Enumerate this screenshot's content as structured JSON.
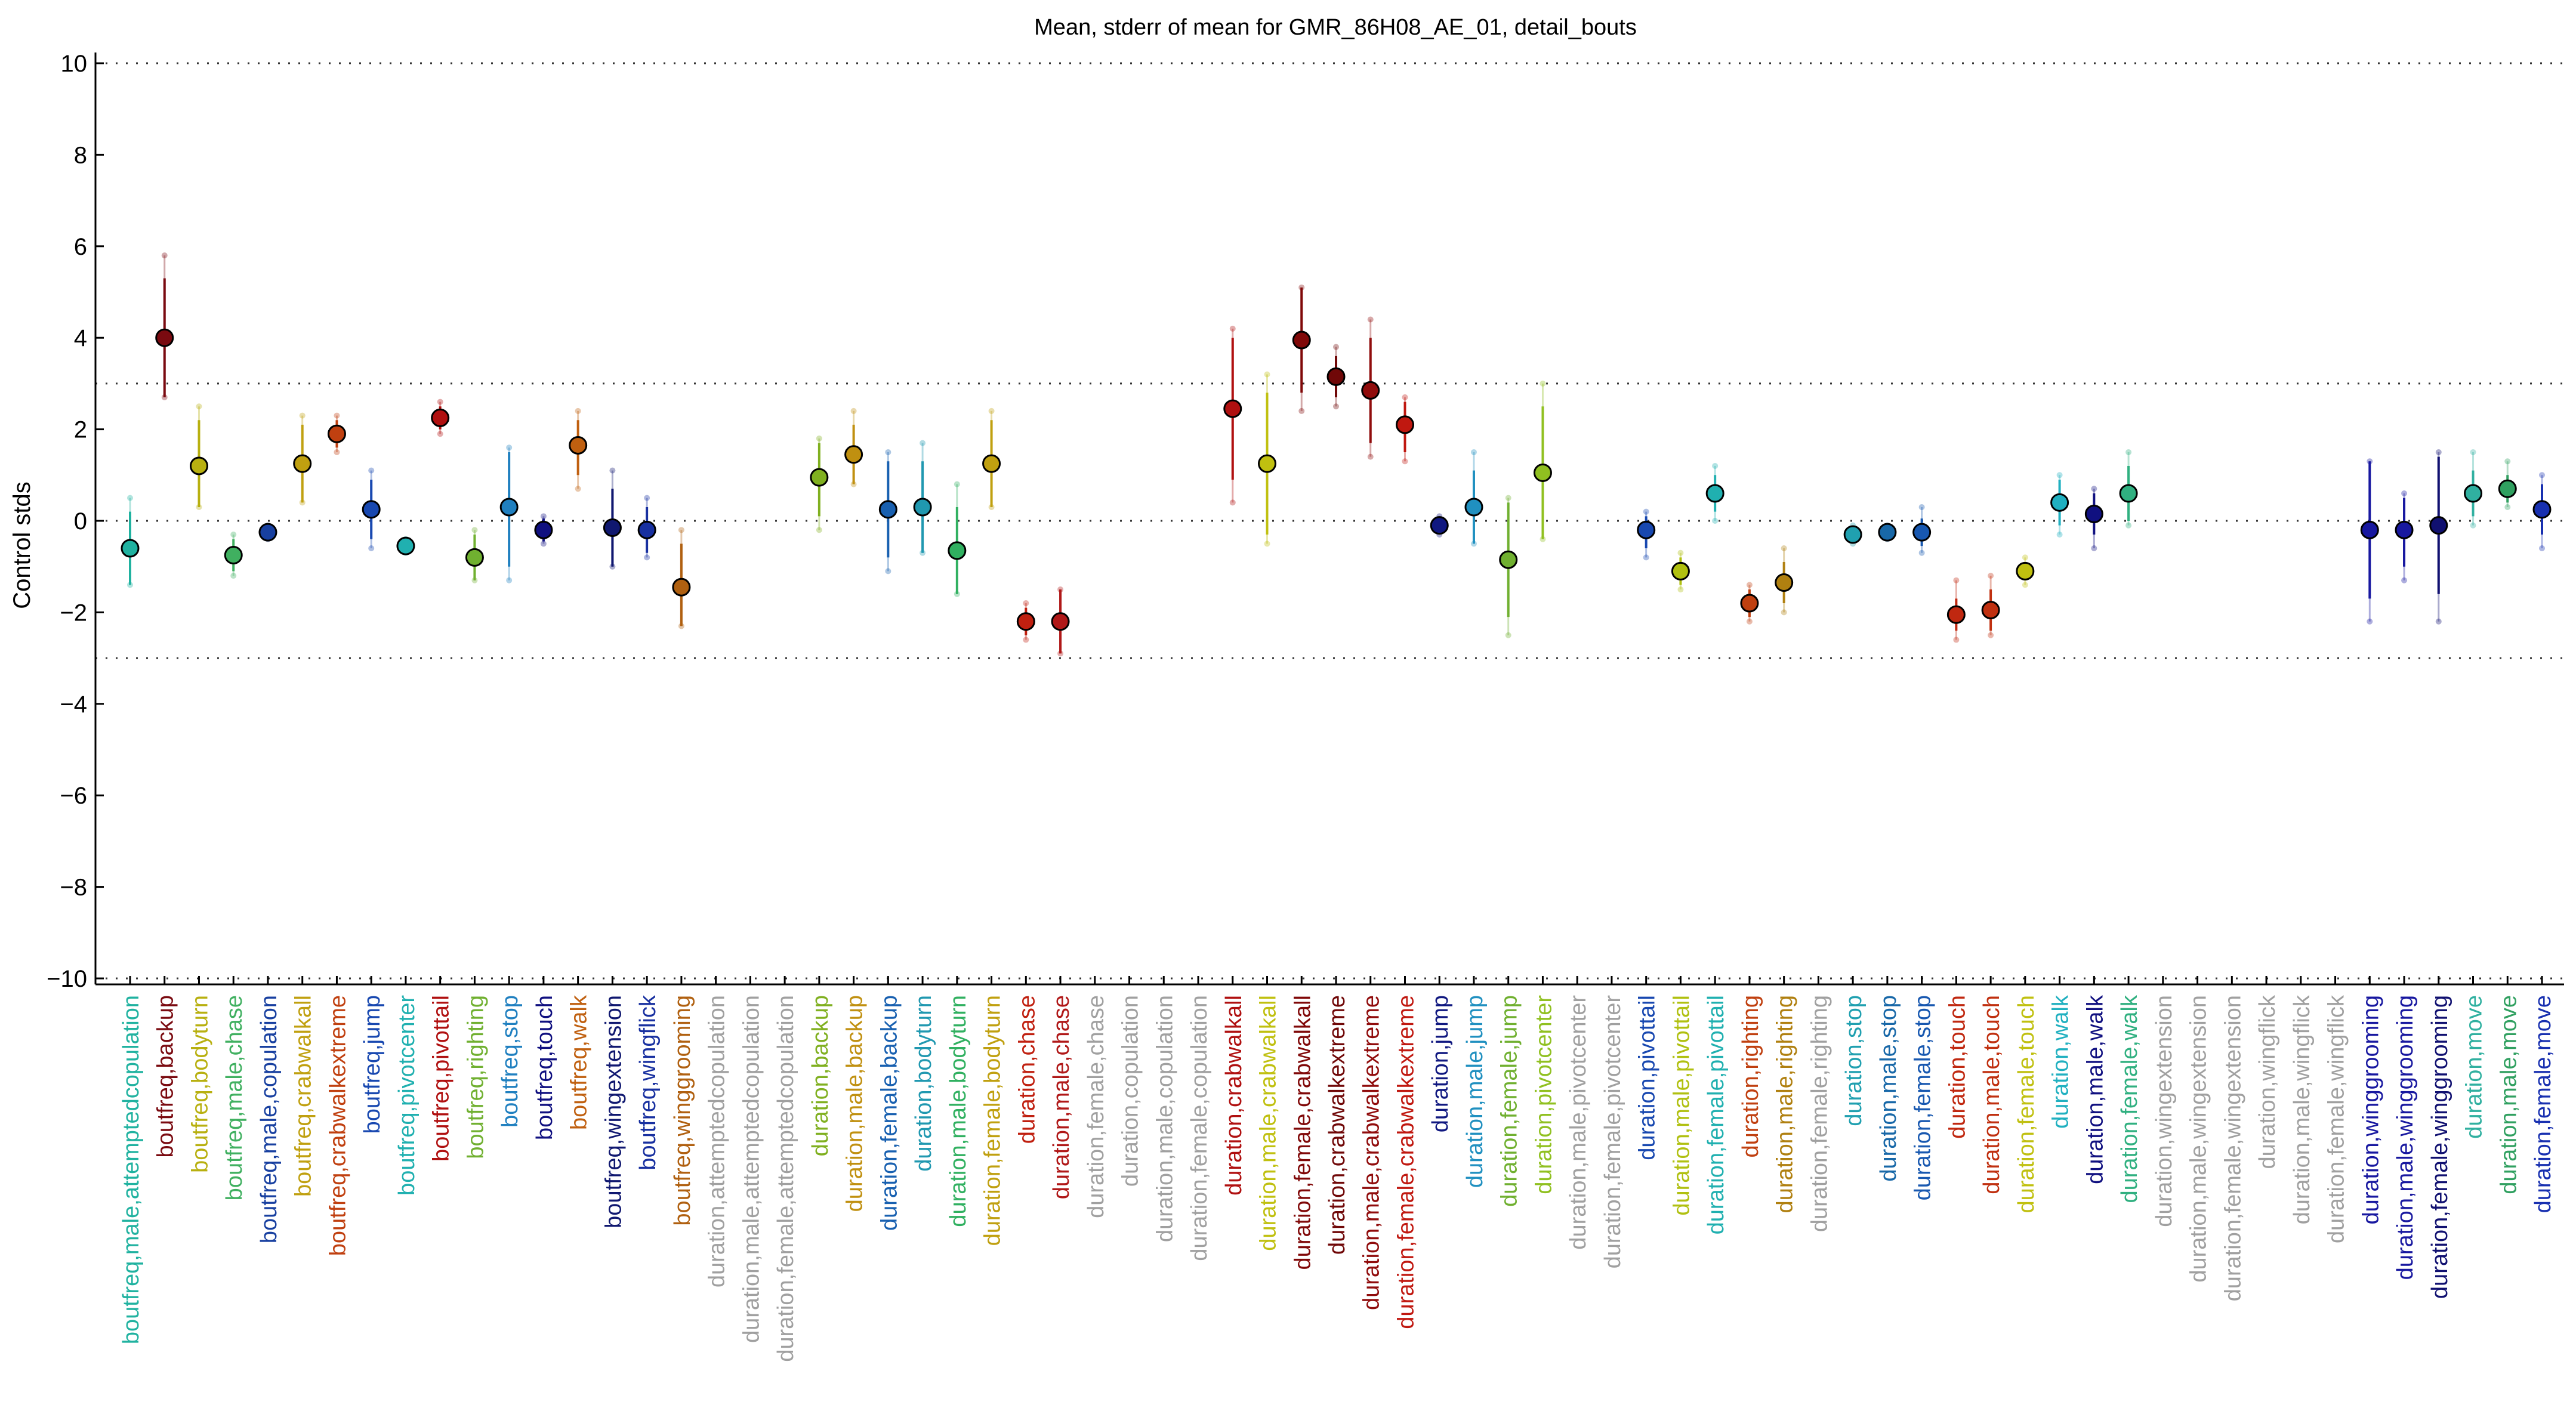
{
  "chart_data": {
    "type": "scatter",
    "title": "Mean, stderr of mean for GMR_86H08_AE_01, detail_bouts",
    "xlabel": "",
    "ylabel": "Control stds",
    "ylim": [
      -10,
      10
    ],
    "yticks": [
      -10,
      -8,
      -6,
      -4,
      -2,
      0,
      2,
      4,
      6,
      8,
      10
    ],
    "reference_lines": [
      10,
      3,
      0,
      -3,
      -10
    ],
    "grid": false,
    "legend": "none",
    "points": [
      {
        "label": "boutfreq,male,attemptedcopulation",
        "color": "#20b2a0",
        "mean": -0.6,
        "se_lo": -1.4,
        "se_hi": 0.2,
        "lo": -1.4,
        "hi": 0.5
      },
      {
        "label": "boutfreq,backup",
        "color": "#7a0a10",
        "mean": 4.0,
        "se_lo": 2.7,
        "se_hi": 5.3,
        "lo": 2.7,
        "hi": 5.8
      },
      {
        "label": "boutfreq,bodyturn",
        "color": "#b8b010",
        "mean": 1.2,
        "se_lo": 0.3,
        "se_hi": 2.2,
        "lo": 0.3,
        "hi": 2.5
      },
      {
        "label": "boutfreq,male,chase",
        "color": "#40b060",
        "mean": -0.75,
        "se_lo": -1.1,
        "se_hi": -0.4,
        "lo": -1.2,
        "hi": -0.3
      },
      {
        "label": "boutfreq,male,copulation",
        "color": "#1840a0",
        "mean": -0.25,
        "se_lo": -0.35,
        "se_hi": -0.15,
        "lo": -0.4,
        "hi": -0.1
      },
      {
        "label": "boutfreq,crabwalkall",
        "color": "#c0a010",
        "mean": 1.25,
        "se_lo": 0.4,
        "se_hi": 2.1,
        "lo": 0.4,
        "hi": 2.3
      },
      {
        "label": "boutfreq,crabwalkextreme",
        "color": "#c04010",
        "mean": 1.9,
        "se_lo": 1.6,
        "se_hi": 2.2,
        "lo": 1.5,
        "hi": 2.3
      },
      {
        "label": "boutfreq,jump",
        "color": "#1848b0",
        "mean": 0.25,
        "se_lo": -0.4,
        "se_hi": 0.9,
        "lo": -0.6,
        "hi": 1.1
      },
      {
        "label": "boutfreq,pivotcenter",
        "color": "#20b0b0",
        "mean": -0.55,
        "se_lo": -0.65,
        "se_hi": -0.45,
        "lo": -0.7,
        "hi": -0.4
      },
      {
        "label": "boutfreq,pivottail",
        "color": "#b01010",
        "mean": 2.25,
        "se_lo": 2.0,
        "se_hi": 2.5,
        "lo": 1.9,
        "hi": 2.6
      },
      {
        "label": "boutfreq,righting",
        "color": "#70b030",
        "mean": -0.8,
        "se_lo": -1.3,
        "se_hi": -0.3,
        "lo": -1.3,
        "hi": -0.2
      },
      {
        "label": "boutfreq,stop",
        "color": "#2080c0",
        "mean": 0.3,
        "se_lo": -1.0,
        "se_hi": 1.5,
        "lo": -1.3,
        "hi": 1.6
      },
      {
        "label": "boutfreq,touch",
        "color": "#101080",
        "mean": -0.2,
        "se_lo": -0.45,
        "se_hi": 0.05,
        "lo": -0.5,
        "hi": 0.1
      },
      {
        "label": "boutfreq,walk",
        "color": "#c06010",
        "mean": 1.65,
        "se_lo": 1.0,
        "se_hi": 2.2,
        "lo": 0.7,
        "hi": 2.4
      },
      {
        "label": "boutfreq,wingextension",
        "color": "#101870",
        "mean": -0.15,
        "se_lo": -1.0,
        "se_hi": 0.7,
        "lo": -1.0,
        "hi": 1.1
      },
      {
        "label": "boutfreq,wingflick",
        "color": "#1830a0",
        "mean": -0.2,
        "se_lo": -0.7,
        "se_hi": 0.3,
        "lo": -0.8,
        "hi": 0.5
      },
      {
        "label": "boutfreq,winggrooming",
        "color": "#b06010",
        "mean": -1.45,
        "se_lo": -2.3,
        "se_hi": -0.5,
        "lo": -2.3,
        "hi": -0.2
      },
      {
        "label": "duration,attemptedcopulation",
        "color": "#a0a0a0"
      },
      {
        "label": "duration,male,attemptedcopulation",
        "color": "#a0a0a0"
      },
      {
        "label": "duration,female,attemptedcopulation",
        "color": "#a0a0a0"
      },
      {
        "label": "duration,backup",
        "color": "#80b020",
        "mean": 0.95,
        "se_lo": 0.1,
        "se_hi": 1.7,
        "lo": -0.2,
        "hi": 1.8
      },
      {
        "label": "duration,male,backup",
        "color": "#c09010",
        "mean": 1.45,
        "se_lo": 0.8,
        "se_hi": 2.1,
        "lo": 0.8,
        "hi": 2.4
      },
      {
        "label": "duration,female,backup",
        "color": "#1860b0",
        "mean": 0.25,
        "se_lo": -0.8,
        "se_hi": 1.3,
        "lo": -1.1,
        "hi": 1.5
      },
      {
        "label": "duration,bodyturn",
        "color": "#2098b0",
        "mean": 0.3,
        "se_lo": -0.7,
        "se_hi": 1.3,
        "lo": -0.7,
        "hi": 1.7
      },
      {
        "label": "duration,male,bodyturn",
        "color": "#30b060",
        "mean": -0.65,
        "se_lo": -1.6,
        "se_hi": 0.3,
        "lo": -1.6,
        "hi": 0.8
      },
      {
        "label": "duration,female,bodyturn",
        "color": "#c0a010",
        "mean": 1.25,
        "se_lo": 0.3,
        "se_hi": 2.2,
        "lo": 0.3,
        "hi": 2.4
      },
      {
        "label": "duration,chase",
        "color": "#c02010",
        "mean": -2.2,
        "se_lo": -2.5,
        "se_hi": -1.9,
        "lo": -2.6,
        "hi": -1.8
      },
      {
        "label": "duration,male,chase",
        "color": "#b01818",
        "mean": -2.2,
        "se_lo": -2.9,
        "se_hi": -1.5,
        "lo": -2.9,
        "hi": -1.5
      },
      {
        "label": "duration,female,chase",
        "color": "#a0a0a0"
      },
      {
        "label": "duration,copulation",
        "color": "#a0a0a0"
      },
      {
        "label": "duration,male,copulation",
        "color": "#a0a0a0"
      },
      {
        "label": "duration,female,copulation",
        "color": "#a0a0a0"
      },
      {
        "label": "duration,crabwalkall",
        "color": "#b01010",
        "mean": 2.45,
        "se_lo": 0.9,
        "se_hi": 4.0,
        "lo": 0.4,
        "hi": 4.2
      },
      {
        "label": "duration,male,crabwalkall",
        "color": "#c0c010",
        "mean": 1.25,
        "se_lo": -0.3,
        "se_hi": 2.8,
        "lo": -0.5,
        "hi": 3.2
      },
      {
        "label": "duration,female,crabwalkall",
        "color": "#800808",
        "mean": 3.95,
        "se_lo": 2.8,
        "se_hi": 5.1,
        "lo": 2.4,
        "hi": 5.1
      },
      {
        "label": "duration,crabwalkextreme",
        "color": "#700808",
        "mean": 3.15,
        "se_lo": 2.7,
        "se_hi": 3.6,
        "lo": 2.5,
        "hi": 3.8
      },
      {
        "label": "duration,male,crabwalkextreme",
        "color": "#900c0c",
        "mean": 2.85,
        "se_lo": 1.7,
        "se_hi": 4.0,
        "lo": 1.4,
        "hi": 4.4
      },
      {
        "label": "duration,female,crabwalkextreme",
        "color": "#c01810",
        "mean": 2.1,
        "se_lo": 1.5,
        "se_hi": 2.6,
        "lo": 1.3,
        "hi": 2.7
      },
      {
        "label": "duration,jump",
        "color": "#101880",
        "mean": -0.1,
        "se_lo": -0.25,
        "se_hi": 0.05,
        "lo": -0.3,
        "hi": 0.1
      },
      {
        "label": "duration,male,jump",
        "color": "#2090c0",
        "mean": 0.3,
        "se_lo": -0.5,
        "se_hi": 1.1,
        "lo": -0.5,
        "hi": 1.5
      },
      {
        "label": "duration,female,jump",
        "color": "#70b030",
        "mean": -0.85,
        "se_lo": -2.1,
        "se_hi": 0.4,
        "lo": -2.5,
        "hi": 0.5
      },
      {
        "label": "duration,pivotcenter",
        "color": "#90c020",
        "mean": 1.05,
        "se_lo": -0.4,
        "se_hi": 2.5,
        "lo": -0.4,
        "hi": 3.0
      },
      {
        "label": "duration,male,pivotcenter",
        "color": "#a0a0a0"
      },
      {
        "label": "duration,female,pivotcenter",
        "color": "#a0a0a0"
      },
      {
        "label": "duration,pivottail",
        "color": "#1848b0",
        "mean": -0.2,
        "se_lo": -0.6,
        "se_hi": 0.1,
        "lo": -0.8,
        "hi": 0.2
      },
      {
        "label": "duration,male,pivottail",
        "color": "#b0c010",
        "mean": -1.1,
        "se_lo": -1.4,
        "se_hi": -0.8,
        "lo": -1.5,
        "hi": -0.7
      },
      {
        "label": "duration,female,pivottail",
        "color": "#20b0b0",
        "mean": 0.6,
        "se_lo": 0.2,
        "se_hi": 1.0,
        "lo": 0.0,
        "hi": 1.2
      },
      {
        "label": "duration,righting",
        "color": "#c04010",
        "mean": -1.8,
        "se_lo": -2.1,
        "se_hi": -1.5,
        "lo": -2.2,
        "hi": -1.4
      },
      {
        "label": "duration,male,righting",
        "color": "#b08010",
        "mean": -1.35,
        "se_lo": -1.8,
        "se_hi": -0.9,
        "lo": -2.0,
        "hi": -0.6
      },
      {
        "label": "duration,female,righting",
        "color": "#a0a0a0"
      },
      {
        "label": "duration,stop",
        "color": "#20a0b0",
        "mean": -0.3,
        "se_lo": -0.45,
        "se_hi": -0.15,
        "lo": -0.5,
        "hi": -0.1
      },
      {
        "label": "duration,male,stop",
        "color": "#1868a8",
        "mean": -0.25,
        "se_lo": -0.35,
        "se_hi": -0.15,
        "lo": -0.4,
        "hi": -0.1
      },
      {
        "label": "duration,female,stop",
        "color": "#1858b0",
        "mean": -0.25,
        "se_lo": -0.55,
        "se_hi": 0.05,
        "lo": -0.7,
        "hi": 0.3
      },
      {
        "label": "duration,touch",
        "color": "#c02810",
        "mean": -2.05,
        "se_lo": -2.4,
        "se_hi": -1.7,
        "lo": -2.6,
        "hi": -1.3
      },
      {
        "label": "duration,male,touch",
        "color": "#c03010",
        "mean": -1.95,
        "se_lo": -2.4,
        "se_hi": -1.5,
        "lo": -2.5,
        "hi": -1.2
      },
      {
        "label": "duration,female,touch",
        "color": "#c0c010",
        "mean": -1.1,
        "se_lo": -1.3,
        "se_hi": -0.9,
        "lo": -1.4,
        "hi": -0.8
      },
      {
        "label": "duration,walk",
        "color": "#20b0c0",
        "mean": 0.4,
        "se_lo": -0.1,
        "se_hi": 0.9,
        "lo": -0.3,
        "hi": 1.0
      },
      {
        "label": "duration,male,walk",
        "color": "#101080",
        "mean": 0.15,
        "se_lo": -0.3,
        "se_hi": 0.6,
        "lo": -0.6,
        "hi": 0.7
      },
      {
        "label": "duration,female,walk",
        "color": "#30b080",
        "mean": 0.6,
        "se_lo": 0.0,
        "se_hi": 1.2,
        "lo": -0.1,
        "hi": 1.5
      },
      {
        "label": "duration,wingextension",
        "color": "#a0a0a0"
      },
      {
        "label": "duration,male,wingextension",
        "color": "#a0a0a0"
      },
      {
        "label": "duration,female,wingextension",
        "color": "#a0a0a0"
      },
      {
        "label": "duration,wingflick",
        "color": "#a0a0a0"
      },
      {
        "label": "duration,male,wingflick",
        "color": "#a0a0a0"
      },
      {
        "label": "duration,female,wingflick",
        "color": "#a0a0a0"
      },
      {
        "label": "duration,winggrooming",
        "color": "#1818a0",
        "mean": -0.2,
        "se_lo": -1.7,
        "se_hi": 1.3,
        "lo": -2.2,
        "hi": 1.3
      },
      {
        "label": "duration,male,winggrooming",
        "color": "#1818a0",
        "mean": -0.2,
        "se_lo": -1.0,
        "se_hi": 0.5,
        "lo": -1.3,
        "hi": 0.6
      },
      {
        "label": "duration,female,winggrooming",
        "color": "#101070",
        "mean": -0.1,
        "se_lo": -1.6,
        "se_hi": 1.4,
        "lo": -2.2,
        "hi": 1.5
      },
      {
        "label": "duration,move",
        "color": "#30b0a0",
        "mean": 0.6,
        "se_lo": 0.1,
        "se_hi": 1.1,
        "lo": -0.1,
        "hi": 1.5
      },
      {
        "label": "duration,male,move",
        "color": "#30a060",
        "mean": 0.7,
        "se_lo": 0.4,
        "se_hi": 1.0,
        "lo": 0.3,
        "hi": 1.3
      },
      {
        "label": "duration,female,move",
        "color": "#1830b0",
        "mean": 0.25,
        "se_lo": -0.3,
        "se_hi": 0.8,
        "lo": -0.6,
        "hi": 1.0
      }
    ]
  }
}
